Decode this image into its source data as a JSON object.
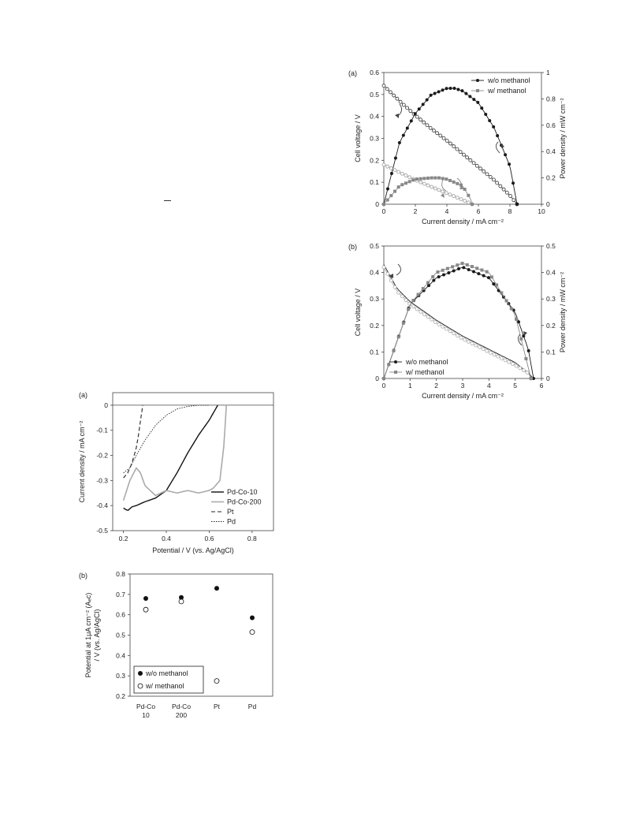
{
  "charts": {
    "fc_a": {
      "panel_label": "(a)",
      "xlabel": "Current density / mA cm⁻²",
      "ylabel_left": "Cell voltage / V",
      "ylabel_right": "Power density / mW cm⁻²",
      "x_ticks": [
        "0",
        "2",
        "4",
        "6",
        "8",
        "10"
      ],
      "y_left_ticks": [
        "0",
        "0.1",
        "0.2",
        "0.3",
        "0.4",
        "0.5",
        "0.6"
      ],
      "y_right_ticks": [
        "0",
        "0.2",
        "0.4",
        "0.6",
        "0.8",
        "1"
      ],
      "legend": [
        "w/o methanol",
        "w/ methanol"
      ]
    },
    "fc_b": {
      "panel_label": "(b)",
      "xlabel": "Current density / mA cm⁻²",
      "ylabel_left": "Cell voltage / V",
      "ylabel_right": "Power density / mW cm⁻²",
      "x_ticks": [
        "0",
        "1",
        "2",
        "3",
        "4",
        "5",
        "6"
      ],
      "y_left_ticks": [
        "0",
        "0.1",
        "0.2",
        "0.3",
        "0.4",
        "0.5"
      ],
      "y_right_ticks": [
        "0",
        "0.1",
        "0.2",
        "0.3",
        "0.4",
        "0.5"
      ],
      "legend": [
        "w/o methanol",
        "w/ methanol"
      ]
    },
    "lsv": {
      "panel_label": "(a)",
      "xlabel": "Potential / V (vs. Ag/AgCl)",
      "ylabel": "Current density / mA cm⁻²",
      "x_ticks": [
        "0.2",
        "0.4",
        "0.6",
        "0.8"
      ],
      "y_ticks": [
        "0",
        "-0.1",
        "-0.2",
        "-0.3",
        "-0.4",
        "-0.5"
      ],
      "legend": [
        "Pd-Co-10",
        "Pd-Co-200",
        "Pt",
        "Pd"
      ]
    },
    "onset": {
      "panel_label": "(b)",
      "ylabel_line1": "Potential at 1μA cm⁻² (Aₑc)",
      "ylabel_line2": "/ V (vs. Ag/AgCl)",
      "y_ticks": [
        "0.2",
        "0.3",
        "0.4",
        "0.5",
        "0.6",
        "0.7",
        "0.8"
      ],
      "categories": [
        [
          "Pd-Co",
          "10"
        ],
        [
          "Pd-Co",
          "200"
        ],
        [
          "Pt",
          ""
        ],
        [
          "Pd",
          ""
        ]
      ],
      "legend": [
        "w/o methanol",
        "w/ methanol"
      ]
    }
  },
  "chart_data": [
    {
      "type": "line",
      "panel": "fuel cell (a)",
      "x_range": [
        0,
        10
      ],
      "y_left_range": [
        0,
        0.6
      ],
      "y_right_range": [
        0,
        1
      ],
      "series": [
        {
          "name": "w/o methanol",
          "axis": "left",
          "x": [
            0,
            1,
            2,
            3,
            4,
            5,
            6,
            7,
            8,
            8.45
          ],
          "y": [
            0.54,
            0.47,
            0.405,
            0.345,
            0.29,
            0.23,
            0.17,
            0.11,
            0.04,
            0.0
          ]
        },
        {
          "name": "w/o methanol",
          "axis": "right",
          "x": [
            0,
            1,
            2,
            3,
            4,
            4.5,
            5,
            6,
            7,
            8,
            8.45
          ],
          "y": [
            0.0,
            0.47,
            0.69,
            0.83,
            0.88,
            0.88,
            0.86,
            0.77,
            0.58,
            0.29,
            0.0
          ]
        },
        {
          "name": "w/ methanol",
          "axis": "left",
          "x": [
            0,
            1,
            2,
            3,
            4,
            5,
            5.6
          ],
          "y": [
            0.18,
            0.145,
            0.11,
            0.08,
            0.05,
            0.02,
            0.0
          ]
        },
        {
          "name": "w/ methanol",
          "axis": "right",
          "x": [
            0,
            1,
            2,
            3,
            3.5,
            4,
            5,
            5.5,
            5.6
          ],
          "y": [
            0.0,
            0.14,
            0.19,
            0.2,
            0.2,
            0.19,
            0.14,
            0.04,
            0.0
          ]
        }
      ]
    },
    {
      "type": "line",
      "panel": "fuel cell (b)",
      "x_range": [
        0,
        6
      ],
      "y_left_range": [
        0,
        0.5
      ],
      "y_right_range": [
        0,
        0.5
      ],
      "series": [
        {
          "name": "w/o methanol",
          "axis": "left",
          "x": [
            0,
            0.5,
            1,
            2,
            3,
            4,
            5,
            5.5,
            5.7
          ],
          "y": [
            0.43,
            0.34,
            0.29,
            0.22,
            0.16,
            0.11,
            0.06,
            0.02,
            0.0
          ]
        },
        {
          "name": "w/o methanol",
          "axis": "right",
          "x": [
            0,
            1,
            2,
            3,
            4,
            5,
            5.5,
            5.7
          ],
          "y": [
            0.0,
            0.28,
            0.38,
            0.42,
            0.38,
            0.25,
            0.11,
            0.0
          ]
        },
        {
          "name": "w/ methanol",
          "axis": "left",
          "x": [
            0,
            0.5,
            1,
            2,
            3,
            4,
            5,
            5.5,
            5.6
          ],
          "y": [
            0.42,
            0.33,
            0.28,
            0.21,
            0.15,
            0.1,
            0.05,
            0.02,
            0.0
          ]
        },
        {
          "name": "w/ methanol",
          "axis": "right",
          "x": [
            0,
            1,
            2,
            3,
            4,
            5,
            5.6
          ],
          "y": [
            0.0,
            0.28,
            0.4,
            0.435,
            0.4,
            0.24,
            0.0
          ]
        }
      ]
    },
    {
      "type": "line",
      "panel": "LSV (a)",
      "x_range": [
        0.15,
        0.9
      ],
      "y_range": [
        -0.5,
        0.05
      ],
      "series": [
        {
          "name": "Pd-Co-10",
          "x": [
            0.2,
            0.22,
            0.24,
            0.26,
            0.3,
            0.35,
            0.4,
            0.45,
            0.5,
            0.55,
            0.6,
            0.64
          ],
          "y": [
            -0.41,
            -0.42,
            -0.405,
            -0.4,
            -0.385,
            -0.37,
            -0.34,
            -0.27,
            -0.19,
            -0.12,
            -0.06,
            0.0
          ]
        },
        {
          "name": "Pd-Co-200",
          "x": [
            0.2,
            0.23,
            0.26,
            0.28,
            0.3,
            0.35,
            0.4,
            0.45,
            0.5,
            0.55,
            0.6,
            0.62,
            0.65,
            0.67,
            0.68
          ],
          "y": [
            -0.38,
            -0.3,
            -0.25,
            -0.27,
            -0.32,
            -0.36,
            -0.34,
            -0.35,
            -0.34,
            -0.35,
            -0.34,
            -0.33,
            -0.3,
            -0.15,
            0.0
          ]
        },
        {
          "name": "Pt",
          "x": [
            0.2,
            0.22,
            0.24,
            0.26,
            0.27,
            0.28,
            0.29
          ],
          "y": [
            -0.29,
            -0.27,
            -0.23,
            -0.17,
            -0.12,
            -0.06,
            0.0
          ]
        },
        {
          "name": "Pd",
          "x": [
            0.2,
            0.23,
            0.26,
            0.3,
            0.35,
            0.4,
            0.45,
            0.5,
            0.55,
            0.6
          ],
          "y": [
            -0.27,
            -0.25,
            -0.2,
            -0.14,
            -0.08,
            -0.04,
            -0.015,
            -0.005,
            0.0,
            0.0
          ]
        }
      ]
    },
    {
      "type": "scatter",
      "panel": "onset potential (b)",
      "categories": [
        "Pd-Co 10",
        "Pd-Co 200",
        "Pt",
        "Pd"
      ],
      "y_range": [
        0.2,
        0.8
      ],
      "series": [
        {
          "name": "w/o methanol",
          "values": [
            0.68,
            0.685,
            0.73,
            0.585
          ]
        },
        {
          "name": "w/ methanol",
          "values": [
            0.625,
            0.665,
            0.275,
            0.515
          ]
        }
      ]
    }
  ]
}
